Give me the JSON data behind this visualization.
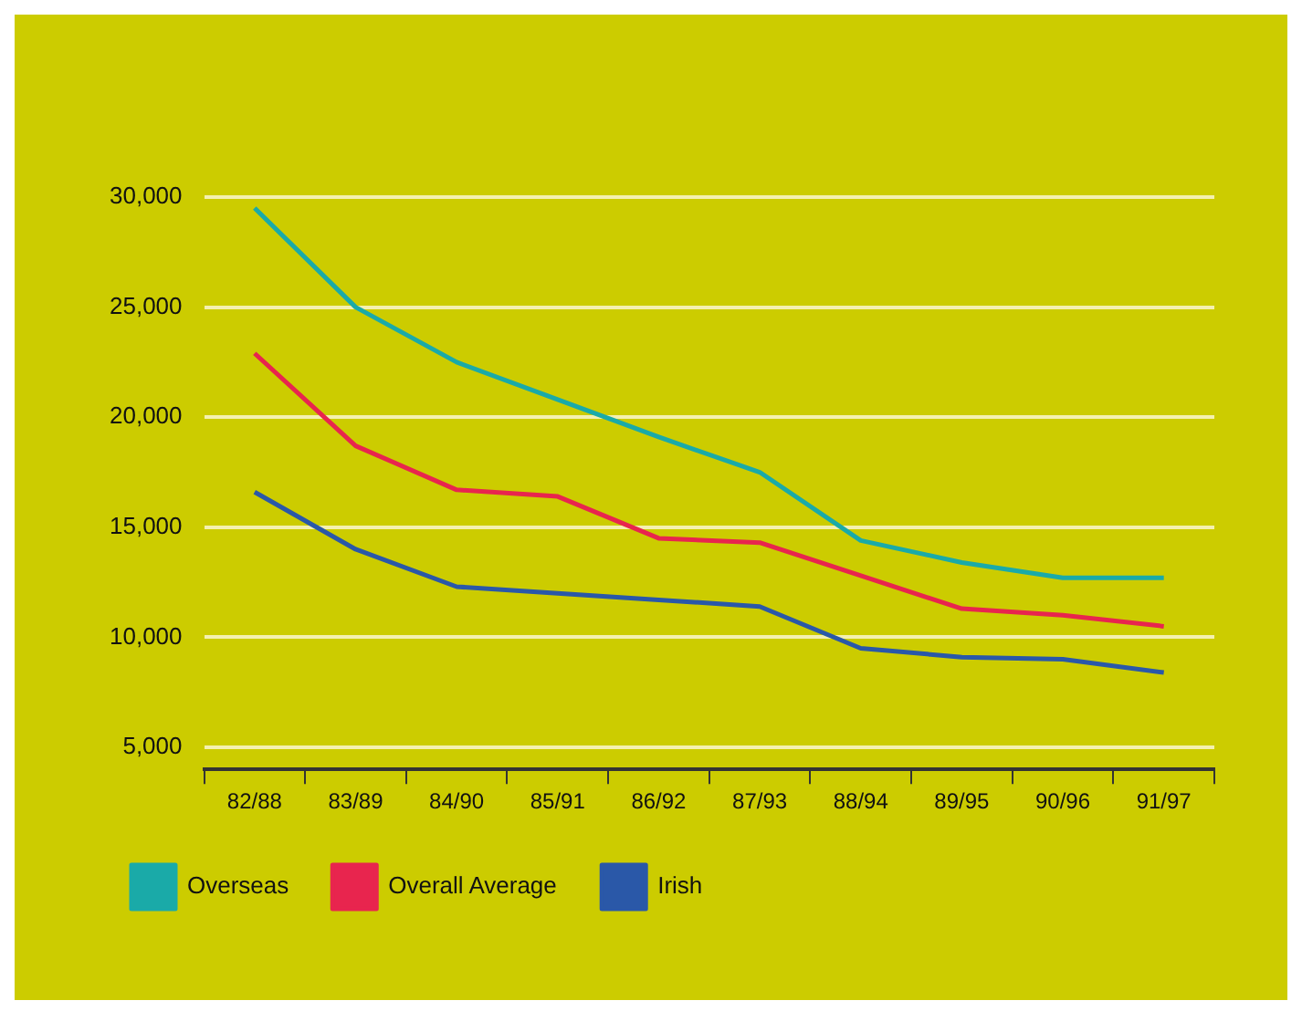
{
  "chart_data": {
    "type": "line",
    "categories": [
      "82/88",
      "83/89",
      "84/90",
      "85/91",
      "86/92",
      "87/93",
      "88/94",
      "89/95",
      "90/96",
      "91/97"
    ],
    "ylim": [
      4000,
      30000
    ],
    "yticks": [
      {
        "value": 5000,
        "label": "5,000"
      },
      {
        "value": 10000,
        "label": "10,000"
      },
      {
        "value": 15000,
        "label": "15,000"
      },
      {
        "value": 20000,
        "label": "20,000"
      },
      {
        "value": 25000,
        "label": "25,000"
      },
      {
        "value": 30000,
        "label": "30,000"
      }
    ],
    "grid": "y",
    "legend": "bottom left",
    "marker": "none",
    "line_style": "solid",
    "series": [
      {
        "name": "Overseas",
        "color": "#1aaaa8",
        "values": [
          29500,
          25000,
          22500,
          20800,
          19100,
          17500,
          14400,
          13400,
          12700,
          12700
        ]
      },
      {
        "name": "Overall Average",
        "color": "#e8254e",
        "values": [
          22900,
          18700,
          16700,
          16400,
          14500,
          14300,
          12800,
          11300,
          11000,
          10500
        ]
      },
      {
        "name": "Irish",
        "color": "#2a58a8",
        "values": [
          16600,
          14000,
          12300,
          12000,
          11700,
          11400,
          9500,
          9100,
          9000,
          8400
        ]
      }
    ]
  }
}
